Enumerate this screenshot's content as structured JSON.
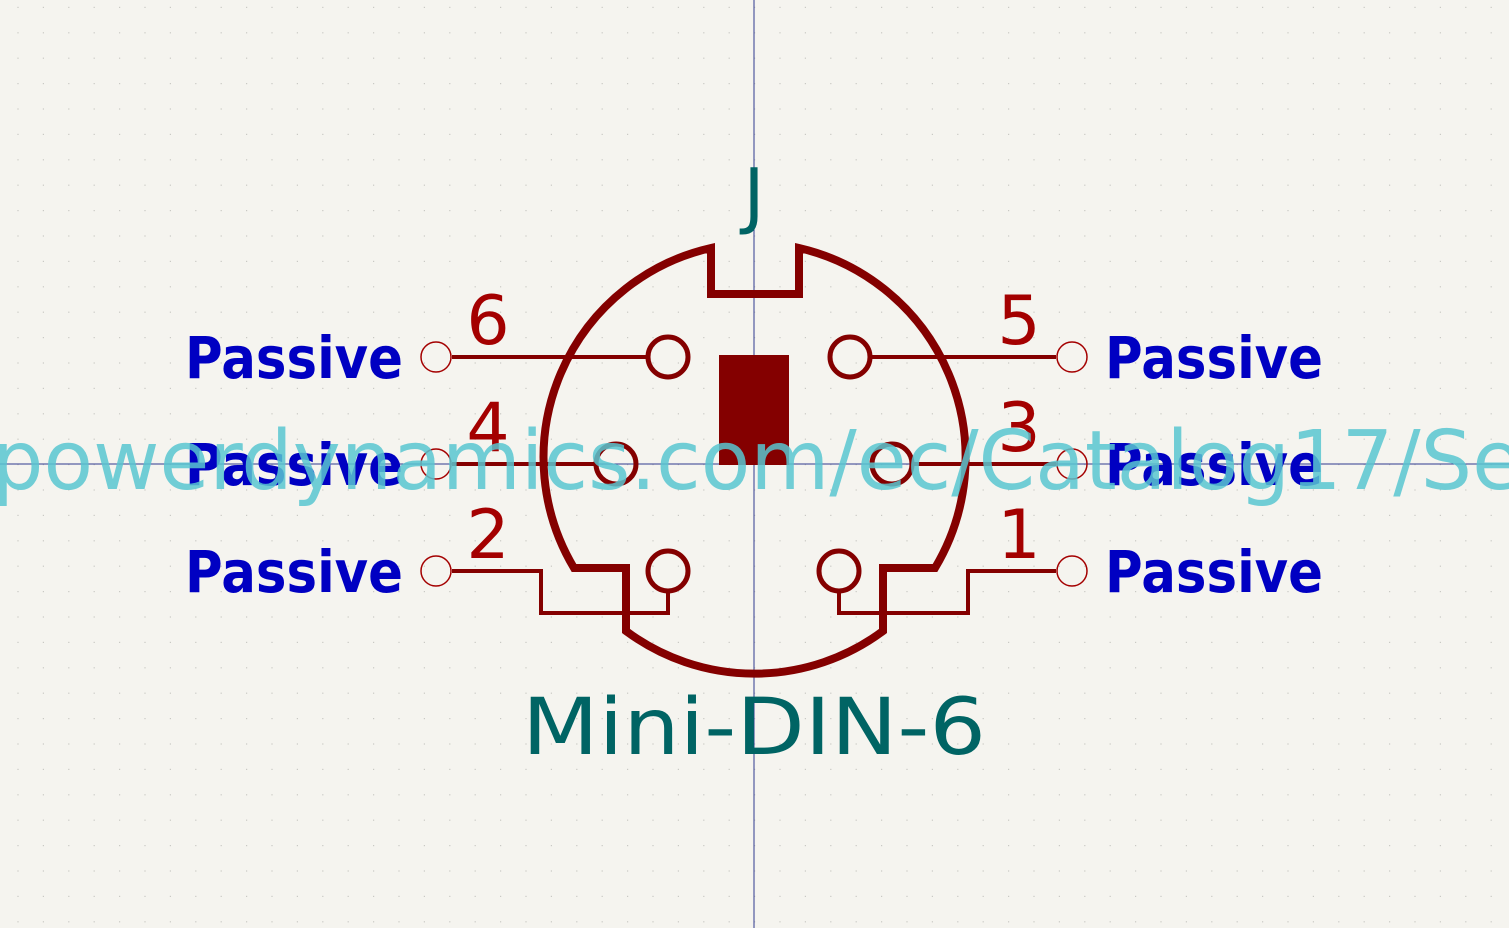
{
  "colors": {
    "background": "#f5f4ef",
    "grid_dot": "#c9c9c4",
    "axis": "#2f3a8f",
    "body": "#840000",
    "pin_number": "#a40000",
    "pin_type": "#0000c2",
    "reference": "#006464",
    "value": "#006464",
    "watermark": "#58c5d0"
  },
  "symbol": {
    "reference": "J",
    "value": "Mini-DIN-6"
  },
  "pins": [
    {
      "number": "6",
      "type": "Passive",
      "side": "left"
    },
    {
      "number": "4",
      "type": "Passive",
      "side": "left"
    },
    {
      "number": "2",
      "type": "Passive",
      "side": "left"
    },
    {
      "number": "5",
      "type": "Passive",
      "side": "right"
    },
    {
      "number": "3",
      "type": "Passive",
      "side": "right"
    },
    {
      "number": "1",
      "type": "Passive",
      "side": "right"
    }
  ],
  "watermark": "powerdynamics.com/ec/Catalog17/Se"
}
